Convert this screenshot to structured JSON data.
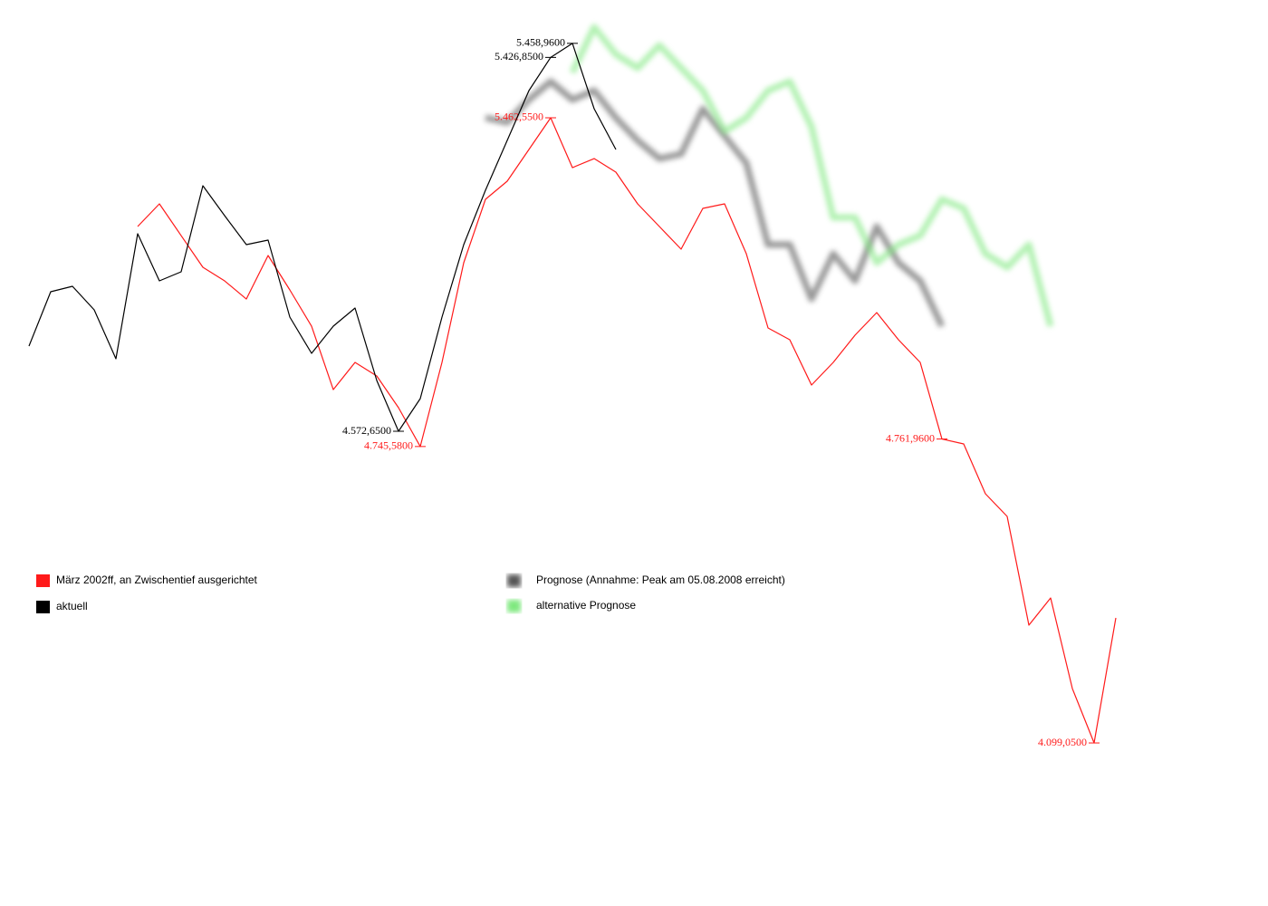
{
  "chart_data": {
    "type": "line",
    "categories": [
      null,
      null,
      null,
      null,
      null,
      null,
      null,
      null,
      null,
      null,
      null,
      null,
      null,
      null,
      null,
      null,
      null,
      null,
      null,
      null,
      null,
      null,
      null,
      null,
      null,
      null,
      null,
      null,
      null,
      null,
      null,
      null,
      null,
      null,
      null,
      null,
      null,
      null,
      null,
      null,
      null,
      null,
      null,
      null,
      null,
      null,
      null,
      null,
      null,
      null,
      null
    ],
    "ylim": [
      3819.2,
      5516.6
    ],
    "series": [
      {
        "name": "März 2002ff, an Zwischentief ausgerichtet",
        "color": "#ff1a1a",
        "ylim": [
          4059.6,
          5679.9
        ],
        "values": [
          null,
          null,
          null,
          null,
          null,
          5225.4,
          5274.8,
          5205.6,
          5136.5,
          5106.8,
          5067.3,
          5162.2,
          5087.1,
          5008,
          4869.7,
          4929,
          4899.4,
          4830.2,
          4745.58,
          4929,
          5146.4,
          5284.7,
          5324.2,
          5393.4,
          5462.55,
          5353.8,
          5373.6,
          5344,
          5274.8,
          5225.4,
          5176,
          5264.9,
          5274.8,
          5166.1,
          5004.1,
          4978.4,
          4879.6,
          4929,
          4988.3,
          5037.7,
          4978.4,
          4929,
          4761.96,
          4751.2,
          4642.5,
          4593.1,
          4356,
          4415.2,
          4217.6,
          4099.05,
          4371.8
        ],
        "value_labels": [
          null,
          null,
          null,
          null,
          null,
          null,
          null,
          null,
          null,
          null,
          null,
          null,
          null,
          null,
          null,
          null,
          null,
          null,
          "4.745,5800",
          null,
          null,
          null,
          null,
          null,
          "5.462,5500",
          null,
          null,
          null,
          null,
          null,
          null,
          null,
          null,
          null,
          null,
          null,
          null,
          null,
          null,
          null,
          null,
          null,
          "4.761,9600",
          null,
          null,
          null,
          null,
          null,
          null,
          "4.099,0500",
          null
        ]
      },
      {
        "name": "aktuell",
        "color": "#000000",
        "values": [
          4767.3,
          4891.5,
          4903.9,
          4850.1,
          4738.3,
          5023.9,
          4916.3,
          4937,
          5133.6,
          5065.3,
          4999.1,
          5009.4,
          4833.5,
          4750.7,
          4812.8,
          4854.2,
          4688.6,
          4572.65,
          4647.2,
          4833.5,
          4999.1,
          5123.3,
          5237.1,
          5351,
          5426.85,
          5458.96,
          5309.6,
          5216.4,
          null,
          null,
          null,
          null,
          null,
          null,
          null,
          null,
          null,
          null,
          null,
          null,
          null,
          null,
          null,
          null,
          null,
          null,
          null,
          null,
          null,
          null,
          null
        ],
        "value_labels": [
          null,
          null,
          null,
          null,
          null,
          null,
          null,
          null,
          null,
          null,
          null,
          null,
          null,
          null,
          null,
          null,
          null,
          "4.572,6500",
          null,
          null,
          null,
          null,
          null,
          null,
          "5.426,8500",
          "5.458,9600",
          null,
          null,
          null,
          null,
          null,
          null,
          null,
          null,
          null,
          null,
          null,
          null,
          null,
          null,
          null,
          null,
          null,
          null,
          null,
          null,
          null,
          null,
          null,
          null,
          null
        ]
      },
      {
        "name": "Prognose (Annahme: Peak am 05.08.2008 erreicht)",
        "color": "#555555",
        "blur": true,
        "values": [
          null,
          null,
          null,
          null,
          null,
          null,
          null,
          null,
          null,
          null,
          null,
          null,
          null,
          null,
          null,
          null,
          null,
          null,
          null,
          null,
          null,
          5288.9,
          5278.5,
          5330.3,
          5371.7,
          5330.3,
          5351,
          5288.9,
          5237.1,
          5195.7,
          5206.1,
          5309.6,
          5247.5,
          5185.4,
          4999.1,
          4999.1,
          4874.9,
          4978.4,
          4916.3,
          5040.5,
          4957.7,
          4916.3,
          4812.8,
          null,
          null,
          null,
          null,
          null,
          null,
          null,
          null
        ]
      },
      {
        "name": "alternative Prognose",
        "color": "#7ee87e",
        "blur": true,
        "values": [
          null,
          null,
          null,
          null,
          null,
          null,
          null,
          null,
          null,
          null,
          null,
          null,
          null,
          null,
          null,
          null,
          null,
          null,
          null,
          null,
          null,
          null,
          null,
          null,
          null,
          5392.4,
          5495.9,
          5433.8,
          5402.7,
          5454.5,
          5402.7,
          5351,
          5257.8,
          5288.9,
          5351,
          5371.7,
          5268.2,
          5061.2,
          5061.2,
          4957.7,
          4999.1,
          5019.8,
          5102.6,
          5081.9,
          4978.4,
          4947.3,
          4999.1,
          4812.8,
          null,
          null,
          null
        ]
      }
    ]
  }
}
